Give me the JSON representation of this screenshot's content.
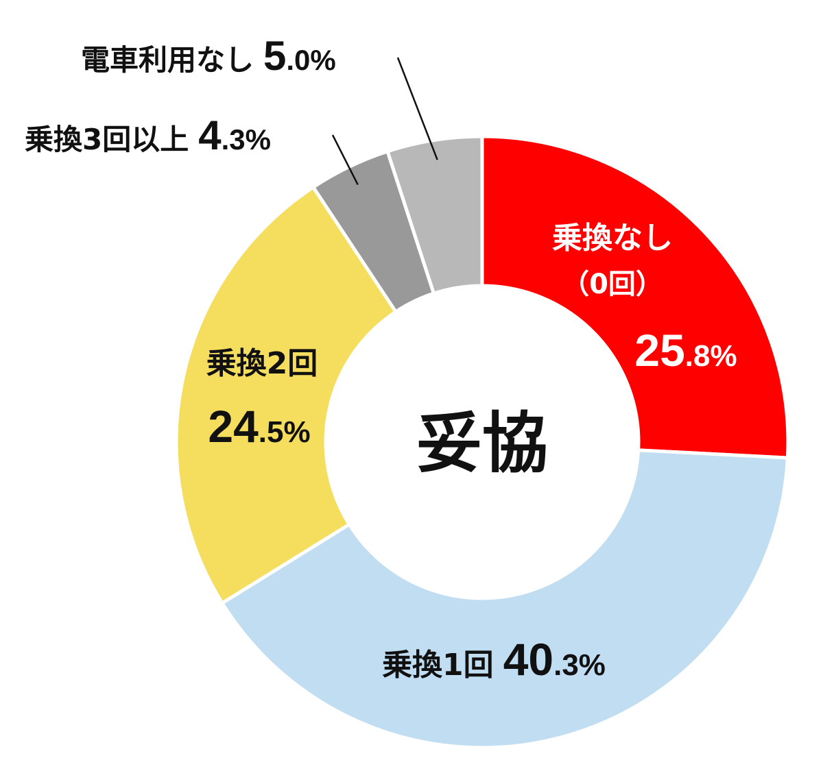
{
  "chart_data": {
    "type": "pie",
    "variant": "donut",
    "center_label": "妥協",
    "slices": [
      {
        "label": "乗換なし",
        "sublabel": "（0回）",
        "value": 25.8,
        "pct_int": "25",
        "pct_dec": ".8%",
        "color": "#FF0000",
        "text_color": "#FFFFFF"
      },
      {
        "label": "乗換1回",
        "value": 40.3,
        "pct_int": "40",
        "pct_dec": ".3%",
        "color": "#C0DDF2",
        "text_color": "#111111"
      },
      {
        "label": "乗換2回",
        "value": 24.5,
        "pct_int": "24",
        "pct_dec": ".5%",
        "color": "#F5DD5E",
        "text_color": "#111111"
      },
      {
        "label": "乗換3回以上",
        "value": 4.3,
        "pct_int": "4",
        "pct_dec": ".3%",
        "color": "#999999",
        "text_color": "#111111"
      },
      {
        "label": "電車利用なし",
        "value": 5.0,
        "pct_int": "5",
        "pct_dec": ".0%",
        "color": "#B8B8B8",
        "text_color": "#111111"
      }
    ]
  }
}
